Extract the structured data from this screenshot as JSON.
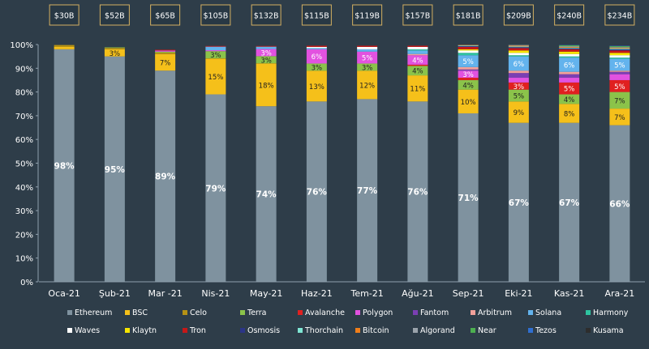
{
  "chart_data": {
    "type": "bar",
    "stacked": true,
    "title": "",
    "xlabel": "",
    "ylabel": "",
    "ylim": [
      0,
      100
    ],
    "y_ticks": [
      "0%",
      "10%",
      "20%",
      "30%",
      "40%",
      "50%",
      "60%",
      "70%",
      "80%",
      "90%",
      "100%"
    ],
    "grid": false,
    "legend_position": "bottom",
    "categories": [
      "Oca-21",
      "Şub-21",
      "Mar -21",
      "Nis-21",
      "May-21",
      "Haz-21",
      "Tem-21",
      "Ağu-21",
      "Sep-21",
      "Eki-21",
      "Kas-21",
      "Ara-21"
    ],
    "tvl_labels": [
      "$30B",
      "$52B",
      "$65B",
      "$105B",
      "$132B",
      "$115B",
      "$119B",
      "$157B",
      "$181B",
      "$209B",
      "$240B",
      "$234B"
    ],
    "series": [
      {
        "name": "Ethereum",
        "color": "#7f929f",
        "values": [
          98,
          95,
          89,
          79,
          74,
          76,
          77,
          76,
          71,
          67,
          67,
          66
        ],
        "labels": [
          "98%",
          "95%",
          "89%",
          "79%",
          "74%",
          "76%",
          "77%",
          "76%",
          "71%",
          "67%",
          "67%",
          "66%"
        ]
      },
      {
        "name": "BSC",
        "color": "#f5c01a",
        "values": [
          1,
          3,
          7,
          15,
          18,
          13,
          12,
          11,
          10,
          9,
          8,
          7
        ],
        "labels": [
          "",
          "3%",
          "7%",
          "15%",
          "18%",
          "13%",
          "12%",
          "11%",
          "10%",
          "9%",
          "8%",
          "7%"
        ]
      },
      {
        "name": "Celo",
        "color": "#b59215",
        "values": [
          0.8,
          0.6,
          0.6,
          0.2,
          0.1,
          0,
          0,
          0,
          0,
          0,
          0,
          0
        ]
      },
      {
        "name": "Terra",
        "color": "#8bc34a",
        "values": [
          0,
          0.2,
          0.4,
          3,
          3,
          3,
          3,
          4,
          4,
          5,
          4,
          7
        ],
        "labels": [
          "",
          "",
          "",
          "3%",
          "3%",
          "3%",
          "3%",
          "4%",
          "4%",
          "5%",
          "4%",
          "7%"
        ]
      },
      {
        "name": "Avalanche",
        "color": "#e02020",
        "values": [
          0,
          0,
          0,
          0,
          0,
          0,
          0,
          0.5,
          1,
          3,
          5,
          5
        ],
        "labels": [
          "",
          "",
          "",
          "",
          "",
          "",
          "",
          "",
          "",
          "3%",
          "5%",
          "5%"
        ]
      },
      {
        "name": "Polygon",
        "color": "#e252e0",
        "values": [
          0,
          0,
          0.5,
          0.4,
          3,
          6,
          5,
          4,
          3,
          2,
          2,
          2.5
        ],
        "labels": [
          "",
          "",
          "",
          "",
          "3%",
          "6%",
          "5%",
          "4%",
          "3%",
          "",
          "",
          ""
        ]
      },
      {
        "name": "Fantom",
        "color": "#7b3fb3",
        "values": [
          0,
          0,
          0,
          0,
          0,
          0,
          0,
          0,
          0.5,
          2,
          1.5,
          1
        ]
      },
      {
        "name": "Arbitrum",
        "color": "#f2a09a",
        "values": [
          0,
          0,
          0,
          0,
          0,
          0,
          0,
          0.5,
          1,
          1,
          1,
          0.5
        ]
      },
      {
        "name": "Solana",
        "color": "#63b3ed",
        "values": [
          0,
          0,
          0,
          1.5,
          1,
          0.5,
          1,
          1.5,
          5,
          6,
          6,
          5
        ],
        "labels": [
          "",
          "",
          "",
          "",
          "",
          "",
          "",
          "",
          "5%",
          "6%",
          "6%",
          "5%"
        ]
      },
      {
        "name": "Harmony",
        "color": "#2ec4a0",
        "values": [
          0,
          0,
          0,
          0,
          0,
          0,
          0,
          0.5,
          1,
          0.5,
          0.5,
          0.5
        ]
      },
      {
        "name": "Waves",
        "color": "#ffffff",
        "values": [
          0,
          0,
          0,
          0,
          0,
          0.5,
          1,
          1,
          1,
          1,
          1,
          1
        ]
      },
      {
        "name": "Klaytn",
        "color": "#f7e600",
        "values": [
          0,
          0,
          0,
          0,
          0,
          0,
          0,
          0,
          0.5,
          1,
          1,
          1
        ]
      },
      {
        "name": "Tron",
        "color": "#c61818",
        "values": [
          0,
          0,
          0.3,
          0.3,
          0.3,
          0.5,
          0.5,
          0.5,
          1,
          1,
          1,
          1
        ]
      },
      {
        "name": "Osmosis",
        "color": "#2b3587",
        "values": [
          0,
          0,
          0,
          0,
          0,
          0,
          0,
          0,
          0.3,
          0.4,
          0.4,
          0.5
        ]
      },
      {
        "name": "Thorchain",
        "color": "#7fe6d4",
        "values": [
          0,
          0,
          0,
          0,
          0,
          0,
          0,
          0,
          0.3,
          0.3,
          0.3,
          0.3
        ]
      },
      {
        "name": "Bitcoin",
        "color": "#f07e1a",
        "values": [
          0,
          0,
          0,
          0,
          0,
          0,
          0,
          0,
          0.2,
          0.3,
          0.3,
          0.3
        ]
      },
      {
        "name": "Algorand",
        "color": "#9aa3ab",
        "values": [
          0,
          0,
          0,
          0,
          0,
          0,
          0,
          0,
          0.2,
          0.3,
          0.3,
          0.3
        ]
      },
      {
        "name": "Near",
        "color": "#4caf50",
        "values": [
          0,
          0,
          0,
          0,
          0,
          0,
          0,
          0,
          0.2,
          0.3,
          0.4,
          0.4
        ]
      },
      {
        "name": "Tezos",
        "color": "#2f6fd1",
        "values": [
          0,
          0,
          0,
          0,
          0,
          0,
          0,
          0,
          0.2,
          0.2,
          0.2,
          0.2
        ]
      },
      {
        "name": "Kusama",
        "color": "#2d2d2d",
        "values": [
          0,
          0,
          0,
          0,
          0,
          0,
          0,
          0,
          0.2,
          0.2,
          0.2,
          0.2
        ]
      }
    ]
  }
}
